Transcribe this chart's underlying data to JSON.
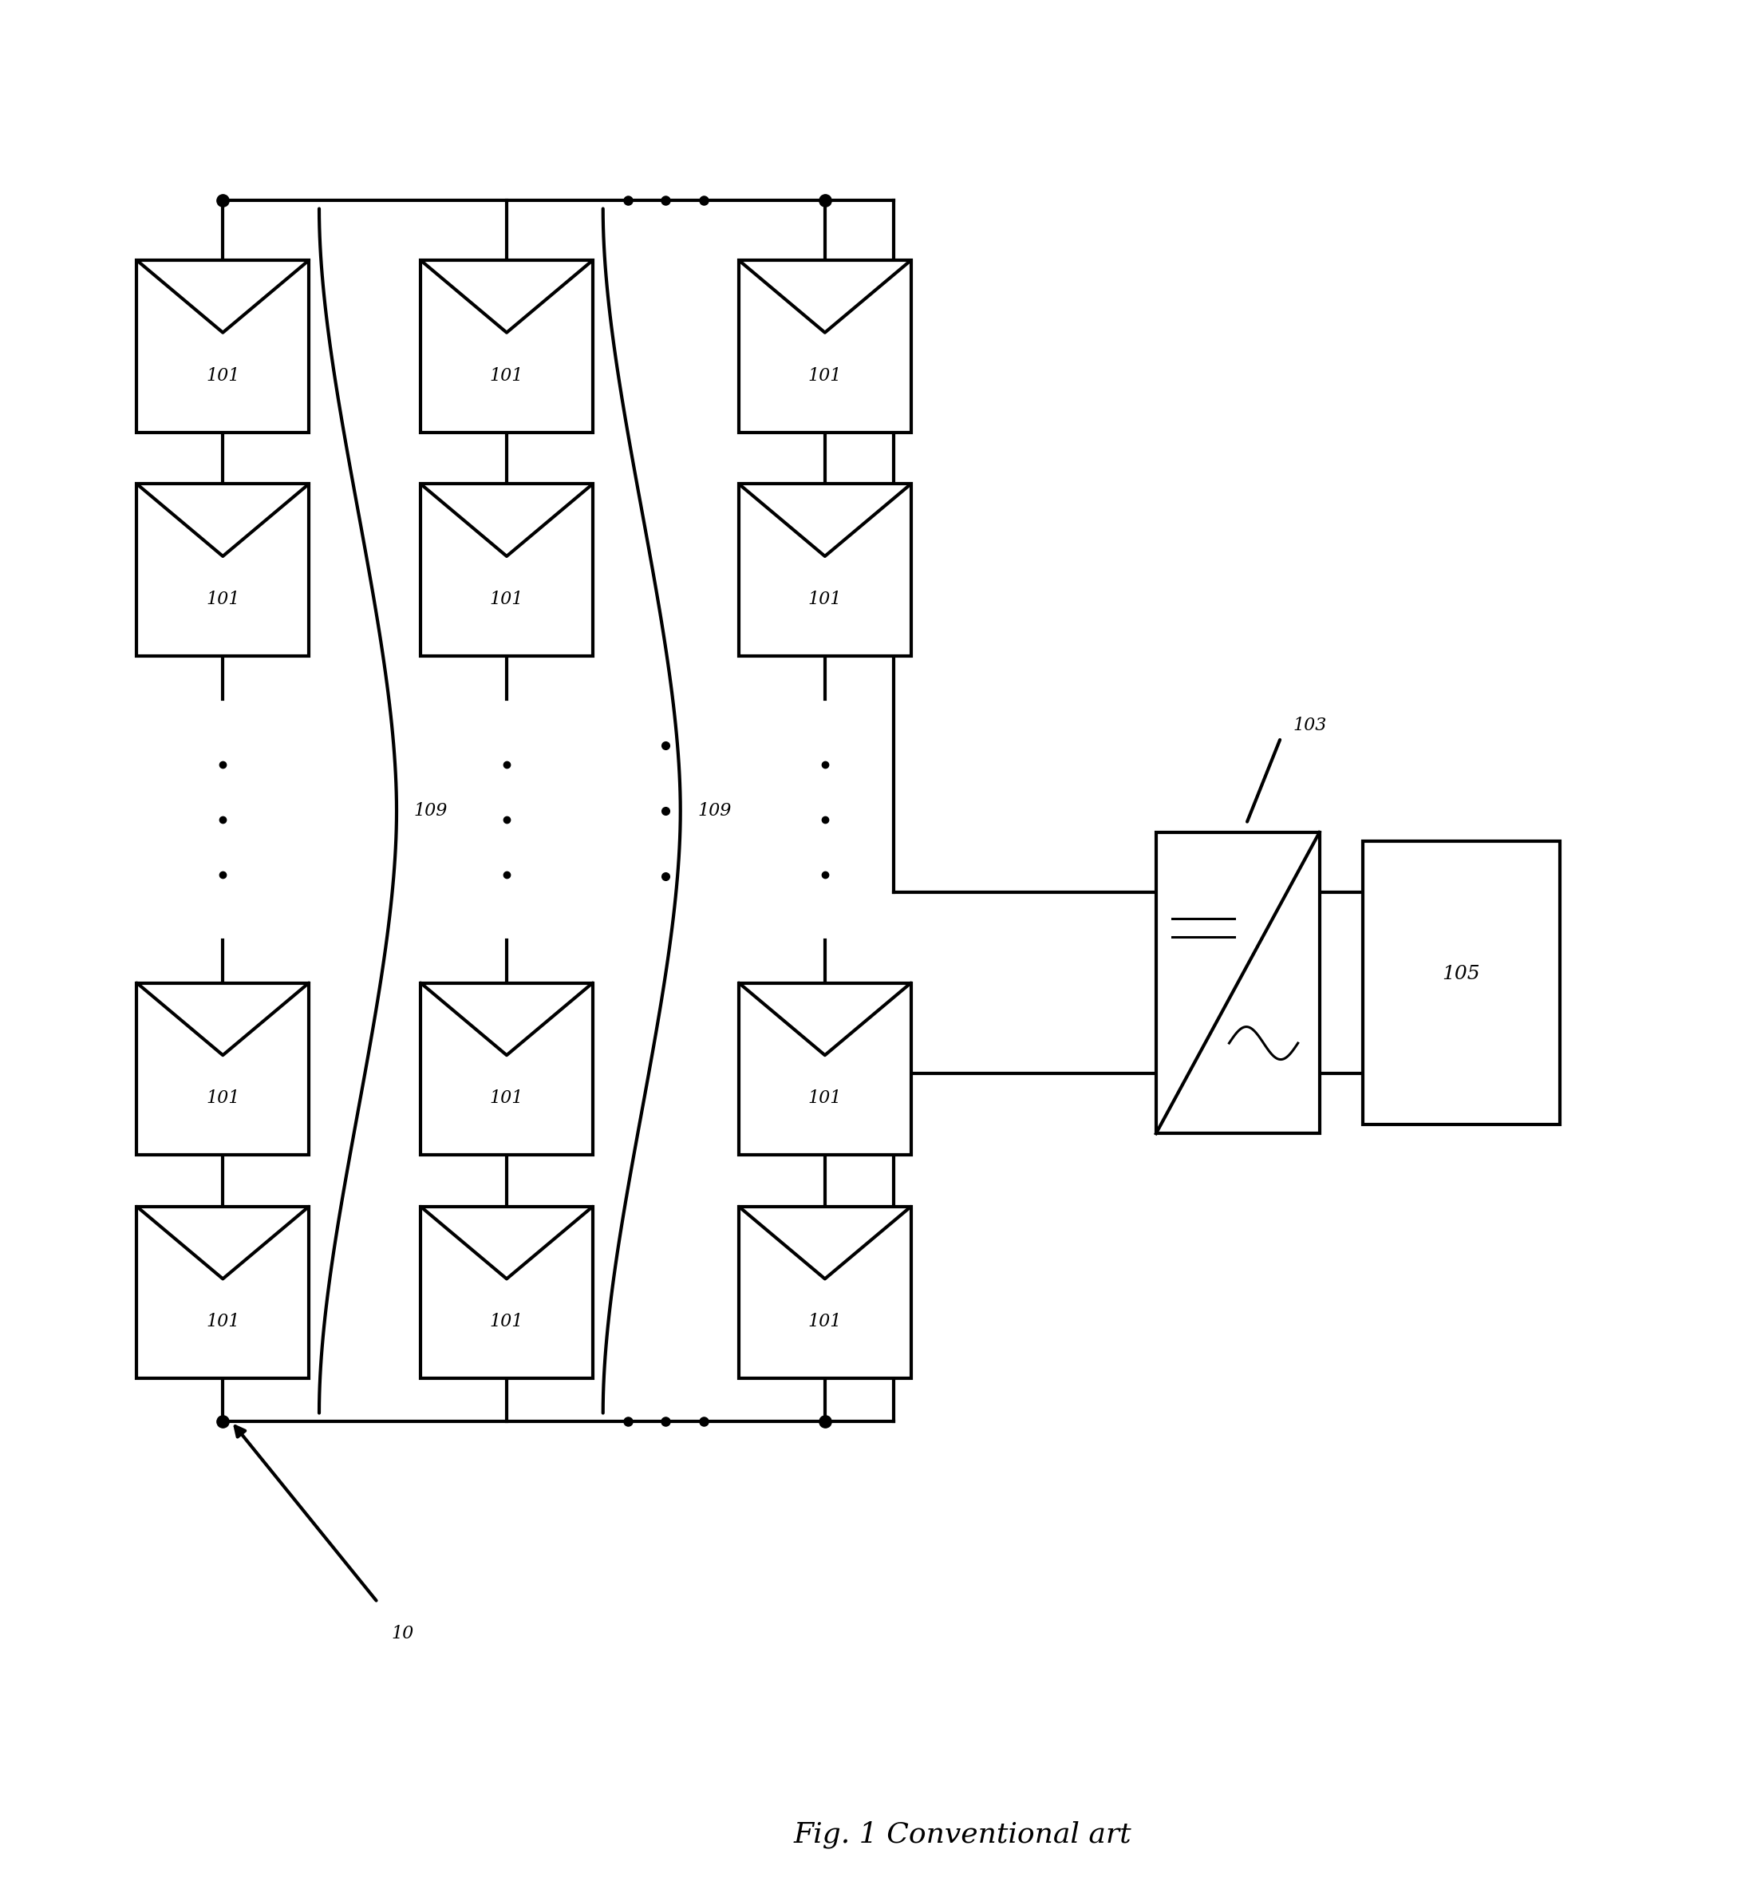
{
  "title": "Fig. 1 Conventional art",
  "bg_color": "#ffffff",
  "line_color": "#000000",
  "panel_label": "101",
  "inverter_label": "103",
  "load_label": "105",
  "string_label": "109",
  "system_label": "10",
  "fig_width": 21.97,
  "fig_height": 23.77
}
